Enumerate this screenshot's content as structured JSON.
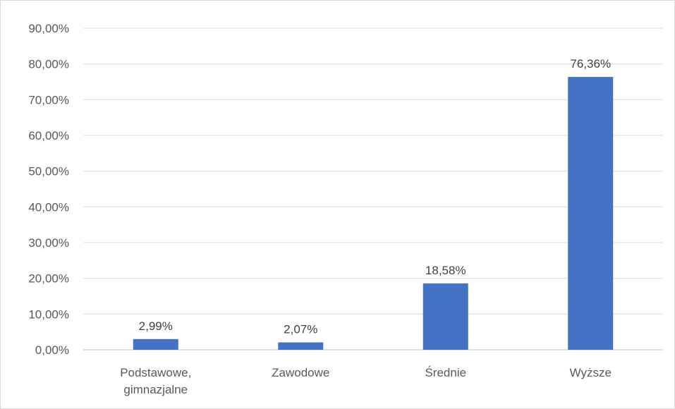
{
  "chart_data": {
    "type": "bar",
    "title": "",
    "xlabel": "",
    "ylabel": "",
    "categories": [
      [
        "Podstawowe,",
        "gimnazjalne"
      ],
      [
        "Zawodowe"
      ],
      [
        "Średnie"
      ],
      [
        "Wyższe"
      ]
    ],
    "values": [
      2.99,
      2.07,
      18.58,
      76.36
    ],
    "data_labels": [
      "2,99%",
      "2,07%",
      "18,58%",
      "76,36%"
    ],
    "ylim": [
      0,
      90
    ],
    "yticks": [
      0,
      10,
      20,
      30,
      40,
      50,
      60,
      70,
      80,
      90
    ],
    "ytick_labels": [
      "0,00%",
      "10,00%",
      "20,00%",
      "30,00%",
      "40,00%",
      "50,00%",
      "60,00%",
      "70,00%",
      "80,00%",
      "90,00%"
    ],
    "grid": true,
    "legend": "none",
    "colors": {
      "bar": "#4472c4",
      "grid": "#d9d9d9",
      "axis": "#bfbfbf"
    }
  }
}
